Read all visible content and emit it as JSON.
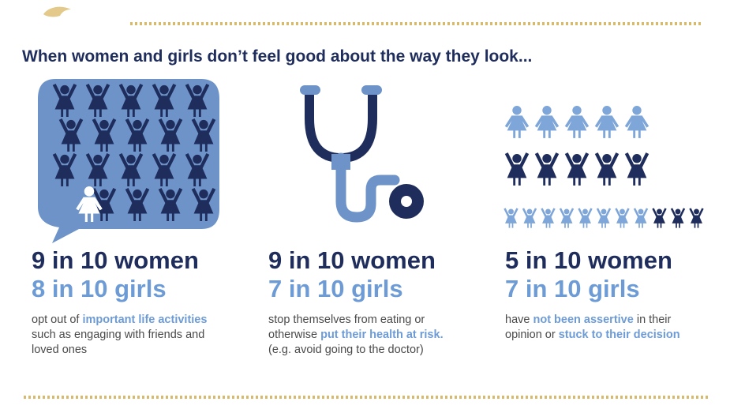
{
  "heading": "When women and girls don’t feel good about the way they look...",
  "columns": [
    {
      "stat_women": "9 in 10 women",
      "stat_girls": "8 in 10 girls",
      "description": [
        {
          "text": "opt out of ",
          "bold": false
        },
        {
          "text": "important life activities",
          "bold": true
        },
        {
          "text": " such as engaging with friends and loved ones",
          "bold": false
        }
      ]
    },
    {
      "stat_women": "9 in 10 women",
      "stat_girls": "7 in 10 girls",
      "description": [
        {
          "text": "stop themselves from eating or otherwise ",
          "bold": false
        },
        {
          "text": "put their health at risk.",
          "bold": true
        },
        {
          "text": " (e.g. avoid going to the doctor)",
          "bold": false
        }
      ]
    },
    {
      "stat_women": "5 in 10 women",
      "stat_girls": "7 in 10 girls",
      "description": [
        {
          "text": "have ",
          "bold": false
        },
        {
          "text": "not been assertive",
          "bold": true
        },
        {
          "text": " in their opinion or ",
          "bold": false
        },
        {
          "text": "stuck to their decision",
          "bold": true
        }
      ]
    }
  ]
}
